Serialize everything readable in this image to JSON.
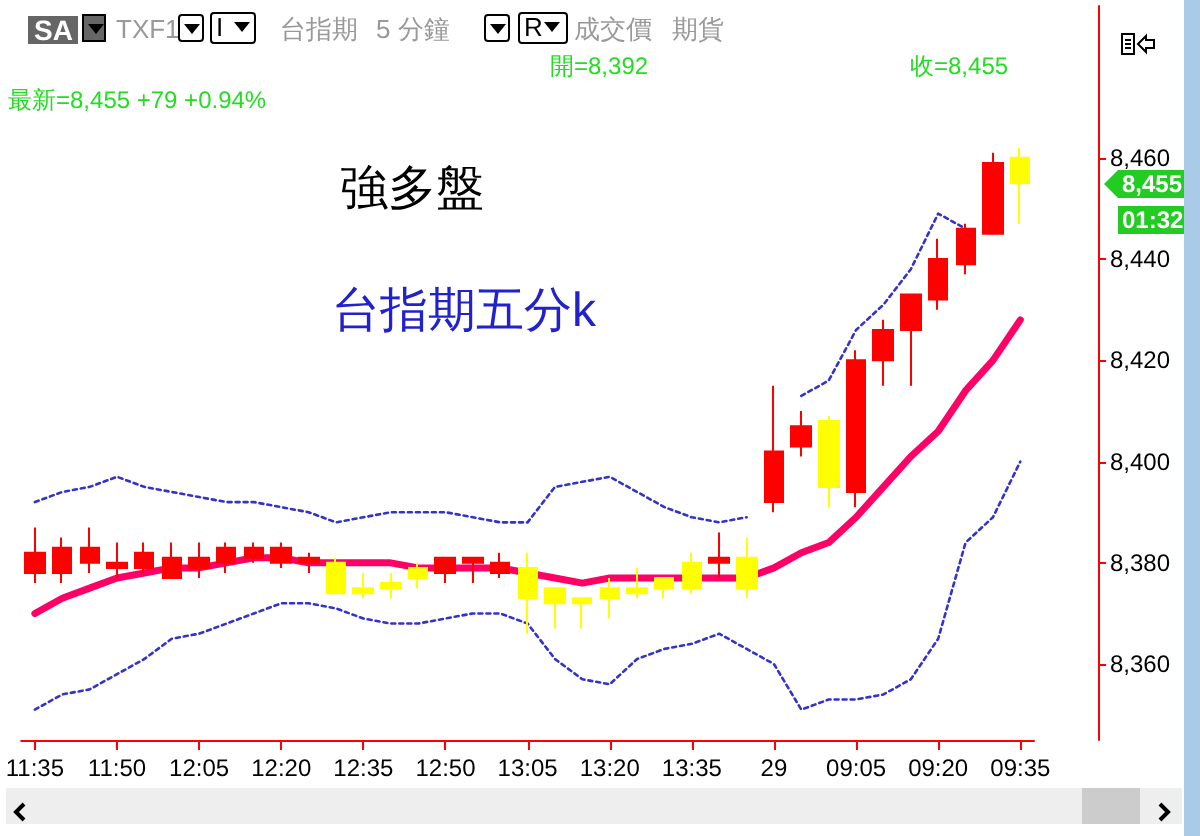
{
  "chart_data": {
    "type": "candlestick",
    "categories": [
      "11:35",
      null,
      null,
      "11:50",
      null,
      null,
      "12:05",
      null,
      null,
      "12:20",
      null,
      null,
      "12:35",
      null,
      null,
      "12:50",
      null,
      null,
      "13:05",
      null,
      null,
      "13:20",
      null,
      null,
      "13:35",
      null,
      null,
      "29",
      null,
      null,
      "09:05",
      null,
      null,
      "09:20",
      null,
      null,
      "09:35"
    ],
    "ohlc": [
      [
        8378,
        8387,
        8376,
        8382
      ],
      [
        8378,
        8385,
        8376,
        8383
      ],
      [
        8380,
        8387,
        8378,
        8383
      ],
      [
        8379,
        8384,
        8377,
        8380
      ],
      [
        8379,
        8384,
        8378,
        8382
      ],
      [
        8377,
        8384,
        8377,
        8381
      ],
      [
        8379,
        8384,
        8377,
        8381
      ],
      [
        8380,
        8384,
        8378,
        8383
      ],
      [
        8381,
        8384,
        8380,
        8383
      ],
      [
        8380,
        8384,
        8379,
        8383
      ],
      [
        8380,
        8382,
        8378,
        8381
      ],
      [
        8380,
        8381,
        8374,
        8374
      ],
      [
        8375,
        8378,
        8373,
        8374
      ],
      [
        8376,
        8378,
        8373,
        8375
      ],
      [
        8379,
        8380,
        8375,
        8377
      ],
      [
        8378,
        8381,
        8376,
        8381
      ],
      [
        8380,
        8381,
        8376,
        8381
      ],
      [
        8378,
        8382,
        8377,
        8380
      ],
      [
        8379,
        8382,
        8366,
        8373
      ],
      [
        8375,
        8375,
        8367,
        8372
      ],
      [
        8373,
        8373,
        8367,
        8372
      ],
      [
        8375,
        8377,
        8369,
        8373
      ],
      [
        8375,
        8379,
        8373,
        8374
      ],
      [
        8377,
        8377,
        8373,
        8375
      ],
      [
        8380,
        8382,
        8374,
        8375
      ],
      [
        8380,
        8386,
        8377,
        8381
      ],
      [
        8381,
        8385,
        8373,
        8375
      ],
      [
        8392,
        8415,
        8390,
        8402
      ],
      [
        8403,
        8410,
        8401,
        8407
      ],
      [
        8408,
        8409,
        8391,
        8395
      ],
      [
        8394,
        8422,
        8391,
        8420
      ],
      [
        8420,
        8428,
        8415,
        8426
      ],
      [
        8426,
        8433,
        8415,
        8433
      ],
      [
        8432,
        8444,
        8430,
        8440
      ],
      [
        8439,
        8447,
        8437,
        8446
      ],
      [
        8445,
        8461,
        8445,
        8459
      ],
      [
        8460,
        8462,
        8447,
        8455
      ]
    ],
    "colors": [
      "#ff0000",
      "#ff0000",
      "#ff0000",
      "#ff0000",
      "#ff0000",
      "#ff0000",
      "#ff0000",
      "#ff0000",
      "#ff0000",
      "#ff0000",
      "#ff0000",
      "#ffff00",
      "#ffff00",
      "#ffff00",
      "#ffff00",
      "#ff0000",
      "#ff0000",
      "#ff0000",
      "#ffff00",
      "#ffff00",
      "#ffff00",
      "#ffff00",
      "#ffff00",
      "#ffff00",
      "#ffff00",
      "#ff0000",
      "#ffff00",
      "#ff0000",
      "#ff0000",
      "#ffff00",
      "#ff0000",
      "#ff0000",
      "#ff0000",
      "#ff0000",
      "#ff0000",
      "#ff0000",
      "#ffff00"
    ],
    "series": [
      {
        "type": "line",
        "color": "#ff0066",
        "values": [
          8370,
          8373,
          8375,
          8377,
          8378,
          8379,
          8379,
          8380,
          8381,
          8381,
          8380,
          8380,
          8380,
          8380,
          8379,
          8379,
          8379,
          8379,
          8378,
          8377,
          8376,
          8377,
          8377,
          8377,
          8377,
          8377,
          8377,
          8379,
          8382,
          8384,
          8389,
          8395,
          8401,
          8406,
          8414,
          8420,
          8428
        ]
      },
      {
        "type": "line",
        "color": "#3333cc",
        "line_style": "dashed",
        "values": [
          8392,
          8394,
          8395,
          8397,
          8395,
          8394,
          8393,
          8392,
          8392,
          8391,
          8390,
          8388,
          8389,
          8390,
          8390,
          8390,
          8389,
          8388,
          8388,
          8395,
          8396,
          8397,
          8394,
          8391,
          8389,
          8388,
          8389,
          null,
          8413,
          8416,
          8426,
          8431,
          8438,
          8449,
          8446,
          null,
          null
        ]
      },
      {
        "type": "line",
        "color": "#3333cc",
        "line_style": "dashed",
        "values": [
          8351,
          8354,
          8355,
          8358,
          8361,
          8365,
          8366,
          8368,
          8370,
          8372,
          8372,
          8371,
          8369,
          8368,
          8368,
          8369,
          8370,
          8370,
          8368,
          8361,
          8357,
          8356,
          8361,
          8363,
          8364,
          8366,
          8363,
          8360,
          8351,
          8353,
          8353,
          8354,
          8357,
          8365,
          8384,
          8389,
          8400
        ]
      }
    ],
    "ylim": [
      8345,
      8490
    ],
    "yticks": [
      {
        "value": 8360,
        "label": "8,360"
      },
      {
        "value": 8380,
        "label": "8,380"
      },
      {
        "value": 8400,
        "label": "8,400"
      },
      {
        "value": 8420,
        "label": "8,420"
      },
      {
        "value": 8440,
        "label": "8,440"
      },
      {
        "value": 8460,
        "label": "8,460"
      }
    ],
    "marker": "none",
    "annotations": [
      "SA",
      "TXF1",
      "I",
      "台指期",
      "5 分鐘",
      "R",
      "成交價",
      "期貨",
      "開=8,392",
      "收=8,455",
      "最新=8,455  +79  +0.94%",
      "強多盤",
      "台指期五分k",
      "8,455",
      "01:32"
    ]
  }
}
